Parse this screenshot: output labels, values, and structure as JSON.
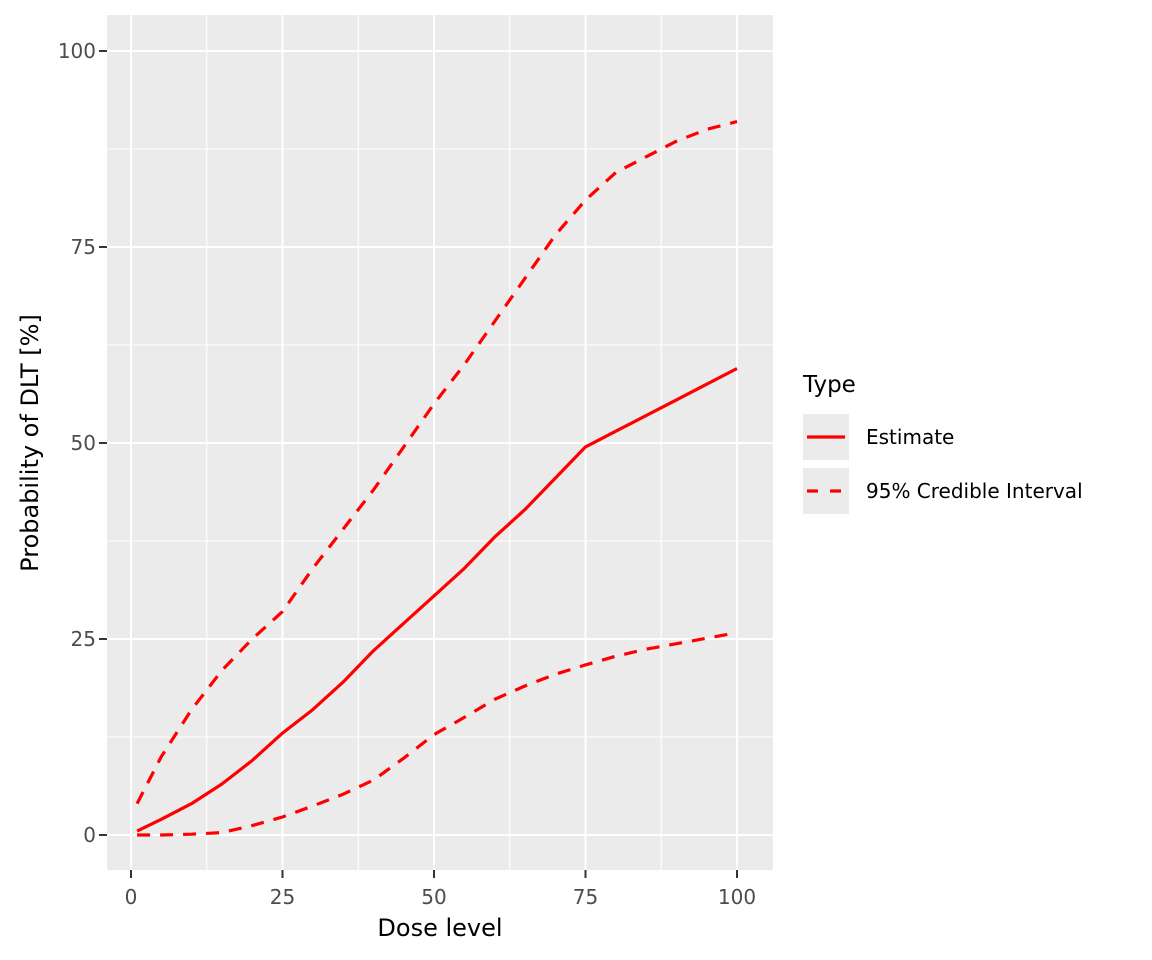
{
  "chart_data": {
    "type": "line",
    "title": "",
    "xlabel": "Dose level",
    "ylabel": "Probability of DLT [%]",
    "xlim": [
      0,
      100
    ],
    "ylim": [
      0,
      100
    ],
    "grid": "on",
    "panel_background": "#EBEBEB",
    "grid_color": "#FFFFFF",
    "tick_mark_color": "#333333",
    "tick_label_color": "#4D4D4D",
    "x_ticks": [
      0,
      25,
      50,
      75,
      100
    ],
    "x_tick_labels": [
      "0",
      "25",
      "50",
      "75",
      "100"
    ],
    "x_minor_ticks": [
      12.5,
      37.5,
      62.5,
      87.5
    ],
    "y_ticks": [
      0,
      25,
      50,
      75,
      100
    ],
    "y_tick_labels": [
      "0",
      "25",
      "50",
      "75",
      "100"
    ],
    "y_minor_ticks": [
      12.5,
      37.5,
      62.5,
      87.5
    ],
    "x": [
      1,
      5,
      10,
      15,
      20,
      25,
      30,
      35,
      40,
      45,
      50,
      55,
      60,
      65,
      70,
      75,
      80,
      85,
      90,
      95,
      100
    ],
    "series": [
      {
        "name": "Estimate",
        "style": "solid",
        "color": "#FF0000",
        "values": [
          0.5,
          2,
          4,
          6.5,
          9.5,
          13,
          16,
          19.5,
          23.5,
          27,
          30.5,
          34,
          38,
          41.5,
          45.5,
          49.5,
          51.5,
          53.5,
          55.5,
          57.5,
          59.5
        ]
      },
      {
        "name": "95% Credible Interval (upper)",
        "style": "dashed",
        "color": "#FF0000",
        "values": [
          4,
          10,
          16,
          21,
          25,
          28.5,
          34,
          39,
          44,
          49.5,
          55,
          60,
          65.5,
          71,
          76.5,
          81,
          84.5,
          86.5,
          88.5,
          90,
          91
        ]
      },
      {
        "name": "95% Credible Interval (lower)",
        "style": "dashed",
        "color": "#FF0000",
        "values": [
          0,
          0,
          0.1,
          0.3,
          1.2,
          2.3,
          3.7,
          5.2,
          7,
          9.8,
          12.8,
          15,
          17.3,
          19,
          20.5,
          21.7,
          22.8,
          23.7,
          24.4,
          25.1,
          25.8
        ]
      }
    ],
    "legend": {
      "title": "Type",
      "position": "right",
      "key_fill": "#EBEBEB",
      "items": [
        {
          "label": "Estimate",
          "style": "solid",
          "color": "#FF0000"
        },
        {
          "label": "95% Credible Interval",
          "style": "dashed",
          "color": "#FF0000"
        }
      ]
    }
  }
}
